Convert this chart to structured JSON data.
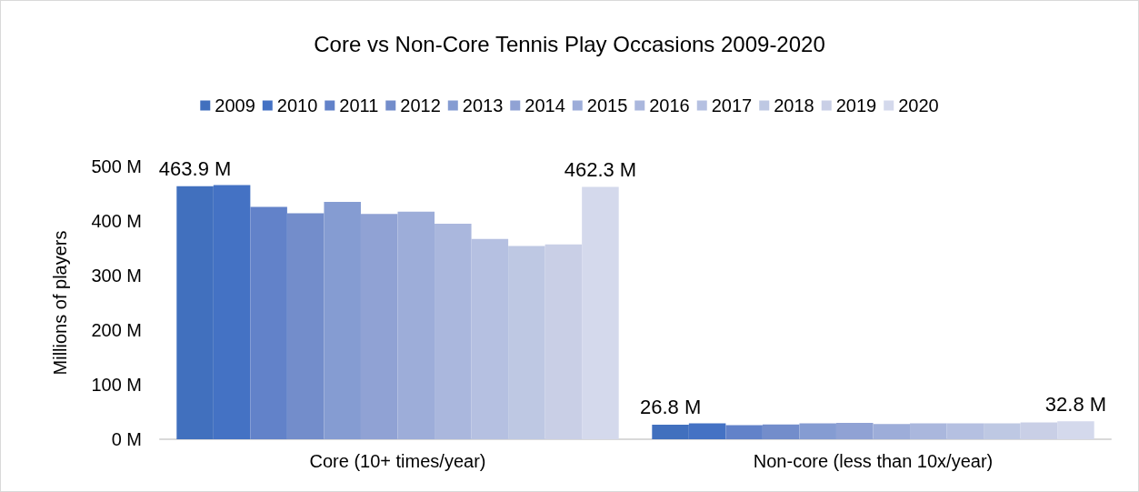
{
  "chart_data": {
    "type": "bar",
    "title": "Core vs Non-Core Tennis Play Occasions 2009-2020",
    "ylabel": "Millions of players",
    "categories": [
      "Core (10+ times/year)",
      "Non-core (less than 10x/year)"
    ],
    "series": [
      {
        "name": "2009",
        "color": "#4170be",
        "values": [
          463.9,
          26.8
        ],
        "value_labels": [
          "463.9 M",
          "26.8 M"
        ]
      },
      {
        "name": "2010",
        "color": "#4472c4",
        "values": [
          466,
          29
        ]
      },
      {
        "name": "2011",
        "color": "#6282c9",
        "values": [
          426,
          26
        ]
      },
      {
        "name": "2012",
        "color": "#738dcb",
        "values": [
          414,
          27
        ]
      },
      {
        "name": "2013",
        "color": "#859cd2",
        "values": [
          435,
          29
        ]
      },
      {
        "name": "2014",
        "color": "#90a2d4",
        "values": [
          413,
          30
        ]
      },
      {
        "name": "2015",
        "color": "#9dadd9",
        "values": [
          417,
          28
        ]
      },
      {
        "name": "2016",
        "color": "#aab7dd",
        "values": [
          395,
          29
        ]
      },
      {
        "name": "2017",
        "color": "#b5c0e1",
        "values": [
          367,
          29
        ]
      },
      {
        "name": "2018",
        "color": "#bec8e3",
        "values": [
          354,
          29
        ]
      },
      {
        "name": "2019",
        "color": "#c9cfe6",
        "values": [
          357,
          31
        ]
      },
      {
        "name": "2020",
        "color": "#d4d9ec",
        "values": [
          462.3,
          32.8
        ],
        "value_labels": [
          "462.3 M",
          "32.8 M"
        ]
      }
    ],
    "ylim": [
      0,
      500
    ],
    "yticks": [
      {
        "value": 0,
        "label": "0 M"
      },
      {
        "value": 100,
        "label": "100 M"
      },
      {
        "value": 200,
        "label": "200 M"
      },
      {
        "value": 300,
        "label": "300 M"
      },
      {
        "value": 400,
        "label": "400 M"
      },
      {
        "value": 500,
        "label": "500 M"
      }
    ],
    "legend": "top",
    "grid": false
  }
}
